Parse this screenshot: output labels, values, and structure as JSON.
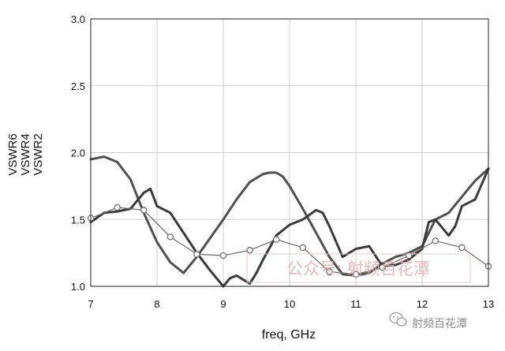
{
  "chart_data": {
    "type": "line",
    "title": "",
    "xlabel": "freq, GHz",
    "ylabel_lines": [
      "VSWR6",
      "VSWR4",
      "VSWR2"
    ],
    "xlim": [
      7,
      13
    ],
    "ylim": [
      1.0,
      3.0
    ],
    "x_ticks": [
      "7",
      "8",
      "9",
      "10",
      "11",
      "12",
      "13"
    ],
    "y_ticks": [
      "1.0",
      "1.5",
      "2.0",
      "2.5",
      "3.0"
    ],
    "grid": true,
    "series": [
      {
        "color": "#505050",
        "style": "thick",
        "x": [
          7.0,
          7.2,
          7.4,
          7.6,
          7.8,
          8.0,
          8.2,
          8.4,
          8.6,
          8.8,
          9.0,
          9.2,
          9.4,
          9.6,
          9.7,
          9.8,
          9.9,
          10.0,
          10.2,
          10.4,
          10.6,
          10.8,
          11.0,
          11.2,
          11.4,
          11.6,
          11.8,
          12.0,
          12.2,
          12.4,
          12.6,
          12.8,
          13.0
        ],
        "y": [
          1.95,
          1.97,
          1.93,
          1.8,
          1.55,
          1.33,
          1.18,
          1.1,
          1.22,
          1.36,
          1.5,
          1.65,
          1.78,
          1.84,
          1.85,
          1.85,
          1.82,
          1.75,
          1.58,
          1.4,
          1.22,
          1.09,
          1.08,
          1.1,
          1.17,
          1.22,
          1.25,
          1.3,
          1.5,
          1.55,
          1.67,
          1.79,
          1.88
        ]
      },
      {
        "color": "#3a3a3a",
        "style": "thick",
        "x": [
          7.0,
          7.2,
          7.4,
          7.6,
          7.8,
          7.9,
          8.0,
          8.2,
          8.4,
          8.6,
          8.8,
          9.0,
          9.1,
          9.2,
          9.3,
          9.4,
          9.5,
          9.6,
          9.8,
          10.0,
          10.2,
          10.4,
          10.5,
          10.6,
          10.8,
          11.0,
          11.2,
          11.4,
          11.6,
          11.8,
          12.0,
          12.1,
          12.2,
          12.4,
          12.5,
          12.6,
          12.8,
          13.0
        ],
        "y": [
          1.48,
          1.55,
          1.56,
          1.58,
          1.7,
          1.73,
          1.6,
          1.55,
          1.4,
          1.25,
          1.12,
          1.0,
          1.06,
          1.08,
          1.05,
          1.02,
          1.1,
          1.2,
          1.38,
          1.46,
          1.5,
          1.57,
          1.55,
          1.45,
          1.22,
          1.28,
          1.3,
          1.15,
          1.16,
          1.2,
          1.28,
          1.48,
          1.5,
          1.38,
          1.45,
          1.6,
          1.65,
          1.88
        ]
      },
      {
        "color": "#6a6a6a",
        "style": "thin-circles",
        "x": [
          7.0,
          7.4,
          7.8,
          8.2,
          8.6,
          9.0,
          9.4,
          9.8,
          10.2,
          10.6,
          11.0,
          11.4,
          11.8,
          12.2,
          12.6,
          13.0
        ],
        "y": [
          1.51,
          1.59,
          1.57,
          1.37,
          1.24,
          1.23,
          1.27,
          1.35,
          1.29,
          1.11,
          1.09,
          1.14,
          1.23,
          1.34,
          1.29,
          1.15
        ]
      }
    ]
  },
  "watermark": {
    "main_text": "公众号: 射频百花潭",
    "corner_text": "射频百花潭"
  }
}
